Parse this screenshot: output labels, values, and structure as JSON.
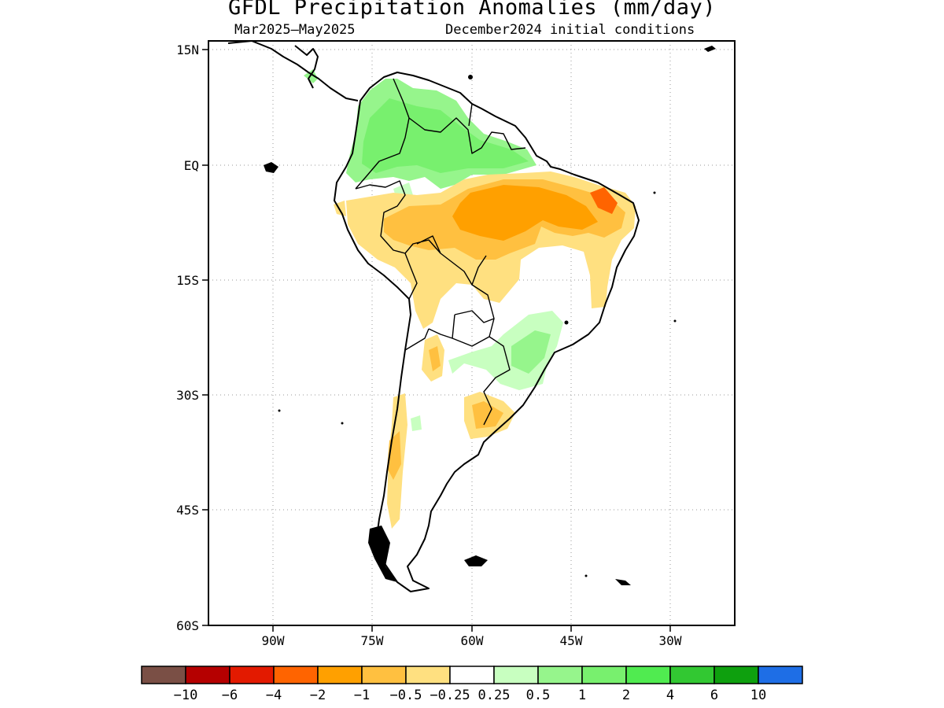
{
  "title": "GFDL Precipitation Anomalies (mm/day)",
  "subtitle_left": "Mar2025—May2025",
  "subtitle_right": "December2024 initial conditions",
  "lat_ticks": [
    "15N",
    "EQ",
    "15S",
    "30S",
    "45S",
    "60S"
  ],
  "lon_ticks": [
    "90W",
    "75W",
    "60W",
    "45W",
    "30W"
  ],
  "colorbar": {
    "colors": [
      "#7a4f45",
      "#b50000",
      "#e31a00",
      "#ff6400",
      "#ffa000",
      "#ffc040",
      "#ffe080",
      "#ffffff",
      "#c8ffc0",
      "#96f58c",
      "#78f06e",
      "#50eb50",
      "#32c832",
      "#0ea00e",
      "#1e6ee6"
    ],
    "labels": [
      "−10",
      "−6",
      "−4",
      "−2",
      "−1",
      "−0.5",
      "−0.25",
      "0.25",
      "0.5",
      "1",
      "2",
      "4",
      "6",
      "10"
    ]
  },
  "anomaly_colors": {
    "light_green": "#c8ffc0",
    "green": "#96f58c",
    "mid_green": "#78f06e",
    "light_yellow": "#ffe080",
    "yellow_orange": "#ffc040",
    "orange": "#ffa000",
    "deep_orange": "#ff6400"
  }
}
